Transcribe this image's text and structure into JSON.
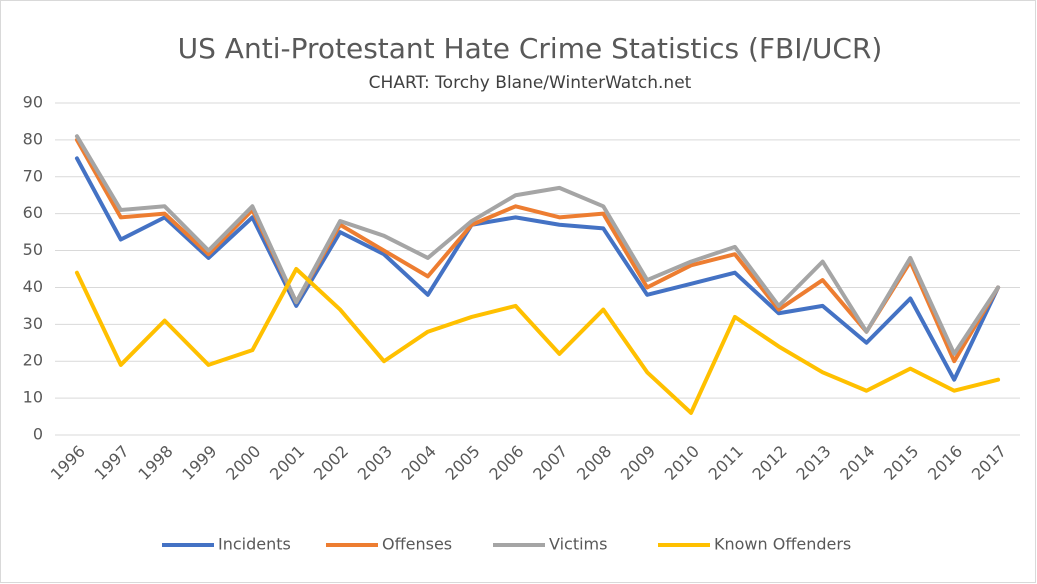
{
  "chart_data": {
    "type": "line",
    "title": "US Anti-Protestant Hate Crime Statistics (FBI/UCR)",
    "subtitle": "CHART: Torchy Blane/WinterWatch.net",
    "categories": [
      "1996",
      "1997",
      "1998",
      "1999",
      "2000",
      "2001",
      "2002",
      "2003",
      "2004",
      "2005",
      "2006",
      "2007",
      "2008",
      "2009",
      "2010",
      "2011",
      "2012",
      "2013",
      "2014",
      "2015",
      "2016",
      "2017"
    ],
    "series": [
      {
        "name": "Incidents",
        "color": "#4472c4",
        "values": [
          75,
          53,
          59,
          48,
          59,
          35,
          55,
          49,
          38,
          57,
          59,
          57,
          56,
          38,
          41,
          44,
          33,
          35,
          25,
          37,
          15,
          40
        ]
      },
      {
        "name": "Offenses",
        "color": "#ed7d31",
        "values": [
          80,
          59,
          60,
          49,
          61,
          36,
          57,
          50,
          43,
          57,
          62,
          59,
          60,
          40,
          46,
          49,
          34,
          42,
          28,
          47,
          20,
          40
        ]
      },
      {
        "name": "Victims",
        "color": "#a5a5a5",
        "values": [
          81,
          61,
          62,
          50,
          62,
          36,
          58,
          54,
          48,
          58,
          65,
          67,
          62,
          42,
          47,
          51,
          35,
          47,
          28,
          48,
          22,
          40
        ]
      },
      {
        "name": "Known Offenders",
        "color": "#ffc000",
        "values": [
          44,
          19,
          31,
          19,
          23,
          45,
          34,
          20,
          28,
          32,
          35,
          22,
          34,
          17,
          6,
          32,
          24,
          17,
          12,
          18,
          12,
          15
        ]
      }
    ],
    "ylim": [
      0,
      90
    ],
    "yticks": [
      0,
      10,
      20,
      30,
      40,
      50,
      60,
      70,
      80,
      90
    ],
    "grid": true,
    "legend": "bottom"
  }
}
